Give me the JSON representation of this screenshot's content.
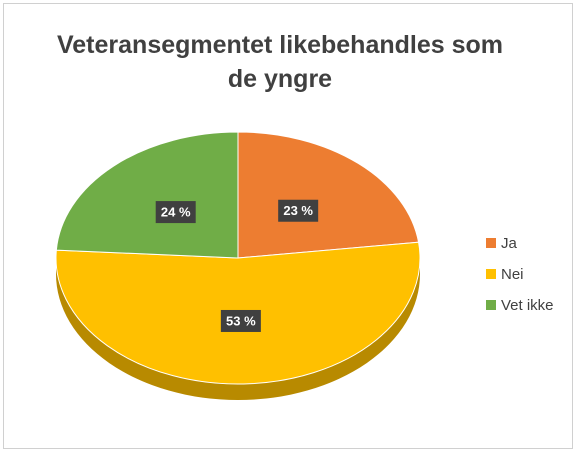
{
  "chart_data": {
    "type": "pie",
    "title": "Veteransegmentet likebehandles som de yngre",
    "categories": [
      "Ja",
      "Nei",
      "Vet ikke"
    ],
    "values": [
      23,
      53,
      24
    ],
    "value_labels": [
      "23 %",
      "53 %",
      "24 %"
    ],
    "colors": [
      "#ED7D31",
      "#FFC000",
      "#70AD47"
    ],
    "legend": "right"
  }
}
